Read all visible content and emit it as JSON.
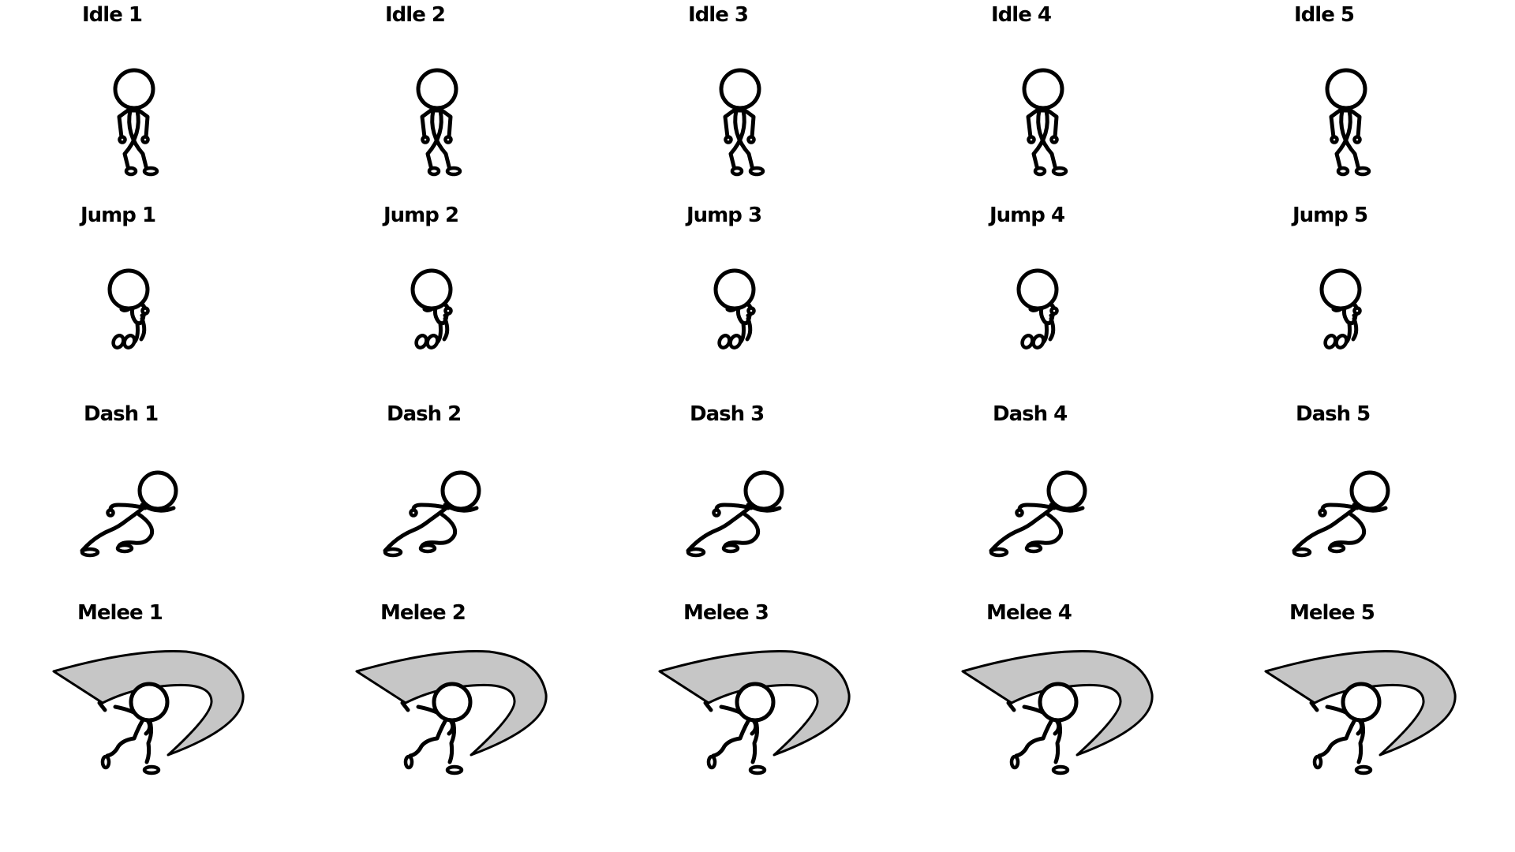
{
  "sheet": {
    "background": "#ffffff",
    "ink_color": "#000000",
    "slash_color": "#c6c6c6"
  },
  "rows": [
    {
      "animation": "idle",
      "frames": [
        {
          "label": "Idle 1"
        },
        {
          "label": "Idle 2"
        },
        {
          "label": "Idle 3"
        },
        {
          "label": "Idle 4"
        },
        {
          "label": "Idle 5"
        }
      ]
    },
    {
      "animation": "jump",
      "frames": [
        {
          "label": "Jump 1"
        },
        {
          "label": "Jump 2"
        },
        {
          "label": "Jump 3"
        },
        {
          "label": "Jump 4"
        },
        {
          "label": "Jump 5"
        }
      ]
    },
    {
      "animation": "dash",
      "frames": [
        {
          "label": "Dash 1"
        },
        {
          "label": "Dash 2"
        },
        {
          "label": "Dash 3"
        },
        {
          "label": "Dash 4"
        },
        {
          "label": "Dash 5"
        }
      ]
    },
    {
      "animation": "melee",
      "frames": [
        {
          "label": "Melee 1"
        },
        {
          "label": "Melee 2"
        },
        {
          "label": "Melee 3"
        },
        {
          "label": "Melee 4"
        },
        {
          "label": "Melee 5"
        }
      ]
    }
  ]
}
